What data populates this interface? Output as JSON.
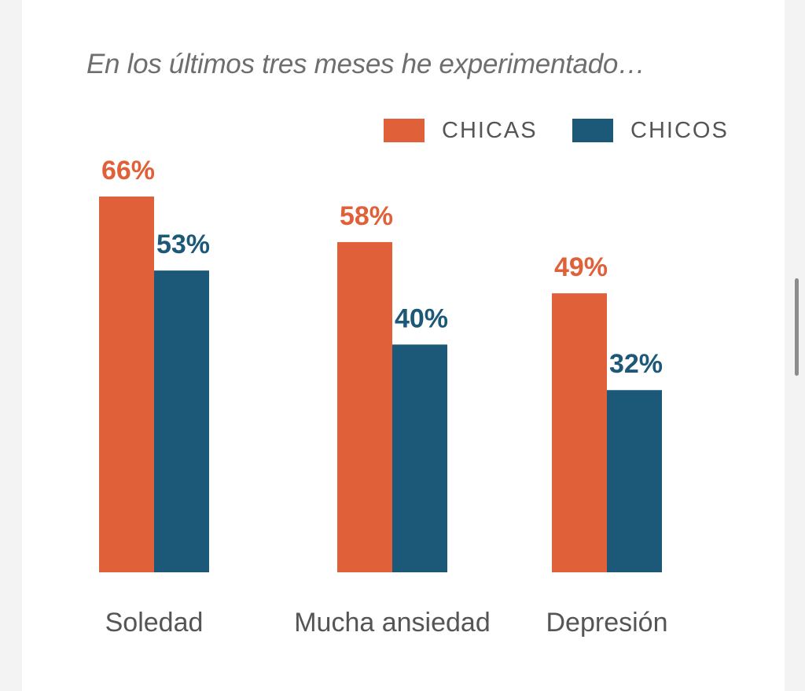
{
  "chart_data": {
    "type": "bar",
    "title": "En los últimos tres meses he experimentado…",
    "categories": [
      "Soledad",
      "Mucha ansiedad",
      "Depresión"
    ],
    "series": [
      {
        "name": "CHICAS",
        "values": [
          66,
          58,
          49
        ],
        "labels": [
          "66%",
          "58%",
          "49%"
        ],
        "color": "#e0603a"
      },
      {
        "name": "CHICOS",
        "values": [
          53,
          40,
          32
        ],
        "labels": [
          "53%",
          "40%",
          "32%"
        ],
        "color": "#1c5878"
      }
    ],
    "xlabel": "",
    "ylabel": "",
    "ylim": [
      0,
      66
    ],
    "grid": false,
    "legend": "top-right",
    "unit": "%"
  }
}
